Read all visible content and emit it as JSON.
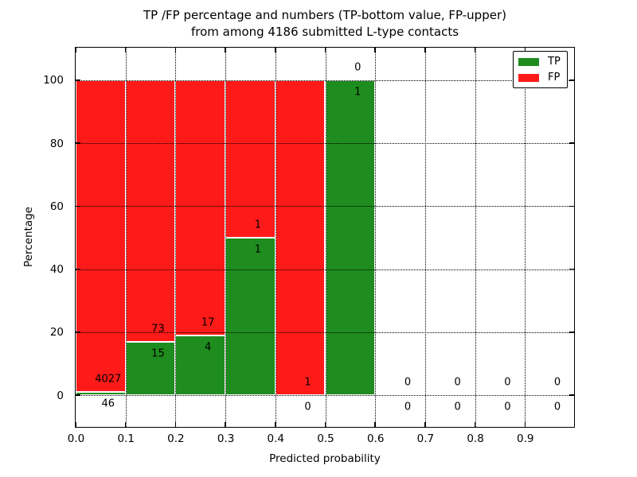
{
  "chart_data": {
    "type": "bar",
    "subtype": "stacked-percentage-histogram",
    "title_line1": "TP /FP percentage and numbers (TP-bottom value, FP-upper)",
    "title_line2": "from among 4186 submitted L-type contacts",
    "xlabel": "Predicted probability",
    "ylabel": "Percentage",
    "xlim": [
      0.0,
      1.0
    ],
    "ylim": [
      -10,
      110
    ],
    "x_ticks": [
      "0.0",
      "0.1",
      "0.2",
      "0.3",
      "0.4",
      "0.5",
      "0.6",
      "0.7",
      "0.8",
      "0.9"
    ],
    "y_ticks": [
      0,
      20,
      40,
      60,
      80,
      100
    ],
    "grid": "dotted-black",
    "legend_position": "upper-right",
    "total_submitted": 4186,
    "annotation_rule": "TP count below stack boundary, FP count above stack boundary",
    "bins": [
      {
        "range": [
          0.0,
          0.1
        ],
        "tp": 46,
        "fp": 4027,
        "tp_pct": 1.1,
        "fp_pct": 98.9
      },
      {
        "range": [
          0.1,
          0.2
        ],
        "tp": 15,
        "fp": 73,
        "tp_pct": 17.0,
        "fp_pct": 83.0
      },
      {
        "range": [
          0.2,
          0.3
        ],
        "tp": 4,
        "fp": 17,
        "tp_pct": 19.0,
        "fp_pct": 81.0
      },
      {
        "range": [
          0.3,
          0.4
        ],
        "tp": 1,
        "fp": 1,
        "tp_pct": 50.0,
        "fp_pct": 50.0
      },
      {
        "range": [
          0.4,
          0.5
        ],
        "tp": 0,
        "fp": 1,
        "tp_pct": 0.0,
        "fp_pct": 100.0
      },
      {
        "range": [
          0.5,
          0.6
        ],
        "tp": 1,
        "fp": 0,
        "tp_pct": 100.0,
        "fp_pct": 0.0
      },
      {
        "range": [
          0.6,
          0.7
        ],
        "tp": 0,
        "fp": 0,
        "tp_pct": 0.0,
        "fp_pct": 0.0
      },
      {
        "range": [
          0.7,
          0.8
        ],
        "tp": 0,
        "fp": 0,
        "tp_pct": 0.0,
        "fp_pct": 0.0
      },
      {
        "range": [
          0.8,
          0.9
        ],
        "tp": 0,
        "fp": 0,
        "tp_pct": 0.0,
        "fp_pct": 0.0
      },
      {
        "range": [
          0.9,
          1.0
        ],
        "tp": 0,
        "fp": 0,
        "tp_pct": 0.0,
        "fp_pct": 0.0
      }
    ],
    "series": [
      {
        "name": "TP",
        "color": "#1e8c1e"
      },
      {
        "name": "FP",
        "color": "#ff1a1a"
      }
    ]
  },
  "legend": {
    "items": [
      {
        "label": "TP",
        "color": "#1e8c1e"
      },
      {
        "label": "FP",
        "color": "#ff1a1a"
      }
    ]
  }
}
